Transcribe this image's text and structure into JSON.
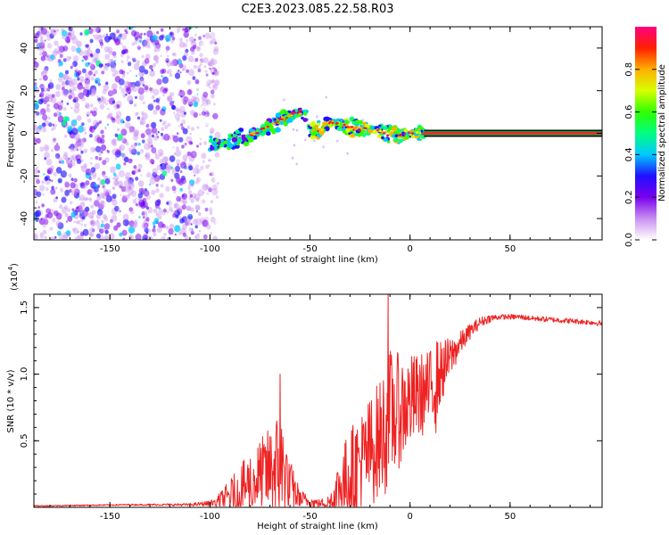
{
  "title": "C2E3.2023.085.22.58.R03",
  "chart_data": [
    {
      "type": "heatmap",
      "name": "spectrogram",
      "xlabel": "Height of straight line (km)",
      "ylabel": "Frequency (Hz)",
      "xlim": [
        -188,
        96
      ],
      "ylim": [
        -50,
        50
      ],
      "xticks": [
        -150,
        -100,
        -50,
        0,
        50
      ],
      "yticks": [
        -40,
        -20,
        0,
        20,
        40
      ],
      "xtick_labels": [
        "-150",
        "-100",
        "-50",
        "0",
        "50"
      ],
      "ytick_labels": [
        "-40",
        "-20",
        "0",
        "20",
        "40"
      ],
      "noise_region_x": [
        -188,
        -100
      ],
      "signal_track": {
        "x": [
          -100,
          -95,
          -90,
          -85,
          -80,
          -75,
          -70,
          -65,
          -60,
          -55,
          -52,
          -50,
          -45,
          -40,
          -35,
          -30,
          -25,
          -20,
          -15,
          -10,
          -5,
          0,
          5,
          7,
          50,
          96
        ],
        "y": [
          -5,
          -5,
          -4,
          -2,
          -1,
          1,
          3,
          6,
          8,
          10,
          8,
          1,
          2,
          5,
          4,
          3,
          2,
          2,
          1,
          -1,
          -1,
          0,
          0,
          0,
          0,
          0
        ]
      },
      "colorbar": {
        "label": "Normalized spectral amplitude",
        "range": [
          0,
          1
        ],
        "ticks": [
          0.0,
          0.2,
          0.4,
          0.6,
          0.8
        ],
        "tick_labels": [
          "0.0",
          "0.2",
          "0.4",
          "0.6",
          "0.8"
        ],
        "colors": [
          "#ffffff",
          "#c890f0",
          "#7a00ee",
          "#2010ff",
          "#00c8ff",
          "#00ff80",
          "#30ff00",
          "#d8ff00",
          "#ffb000",
          "#ff2000",
          "#ff0080"
        ]
      },
      "colors": {
        "line_core": "#ff2222",
        "line_edge": "#00a050"
      }
    },
    {
      "type": "line",
      "name": "snr",
      "xlabel": "Height of straight line (km)",
      "ylabel": "SNR (10 * v/v)",
      "scale_label": "(x10",
      "scale_exponent": "4",
      "scale_suffix": ")",
      "xlim": [
        -188,
        96
      ],
      "ylim": [
        0,
        1.6
      ],
      "xticks": [
        -150,
        -100,
        -50,
        0,
        50
      ],
      "yticks": [
        0.5,
        1.0,
        1.5
      ],
      "xtick_labels": [
        "-150",
        "-100",
        "-50",
        "0",
        "50"
      ],
      "ytick_labels": [
        "0.5",
        "1.0",
        "1.5"
      ],
      "color": "#ee2222",
      "envelope": {
        "x": [
          -188,
          -140,
          -110,
          -100,
          -95,
          -90,
          -85,
          -80,
          -75,
          -70,
          -67,
          -65,
          -62,
          -60,
          -57,
          -55,
          -52,
          -50,
          -45,
          -40,
          -35,
          -30,
          -25,
          -20,
          -15,
          -13,
          -11,
          -10,
          -5,
          0,
          5,
          10,
          12,
          15,
          20,
          25,
          30,
          35,
          40,
          45,
          50,
          55,
          60,
          70,
          80,
          90,
          96
        ],
        "mean": [
          0.01,
          0.02,
          0.02,
          0.03,
          0.05,
          0.09,
          0.13,
          0.18,
          0.23,
          0.27,
          0.3,
          0.28,
          0.24,
          0.17,
          0.1,
          0.07,
          0.05,
          0.04,
          0.03,
          0.04,
          0.14,
          0.25,
          0.33,
          0.42,
          0.52,
          0.58,
          0.62,
          0.68,
          0.73,
          0.79,
          0.84,
          0.88,
          0.95,
          1.0,
          1.12,
          1.23,
          1.32,
          1.39,
          1.42,
          1.43,
          1.43,
          1.43,
          1.42,
          1.41,
          1.4,
          1.39,
          1.38
        ],
        "noise": [
          0.005,
          0.005,
          0.01,
          0.02,
          0.06,
          0.12,
          0.18,
          0.24,
          0.28,
          0.34,
          0.4,
          0.5,
          0.32,
          0.2,
          0.12,
          0.08,
          0.05,
          0.04,
          0.03,
          0.06,
          0.28,
          0.35,
          0.38,
          0.42,
          0.45,
          0.48,
          0.55,
          0.52,
          0.42,
          0.36,
          0.32,
          0.3,
          0.35,
          0.25,
          0.16,
          0.09,
          0.06,
          0.04,
          0.03,
          0.02,
          0.02,
          0.02,
          0.02,
          0.02,
          0.02,
          0.02,
          0.02
        ]
      },
      "spikes": [
        {
          "x": -65,
          "y": 1.0
        },
        {
          "x": -11,
          "y": 1.6
        },
        {
          "x": 13,
          "y": 0.56
        }
      ]
    }
  ]
}
